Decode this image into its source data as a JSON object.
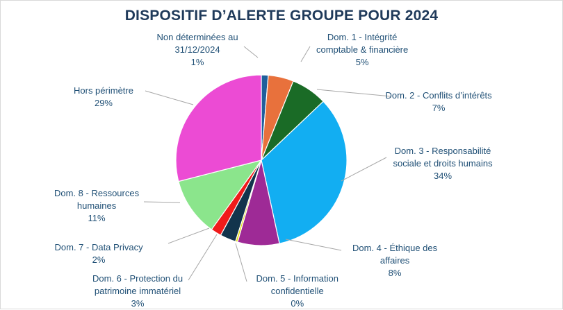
{
  "chart_data": {
    "type": "pie",
    "title": "DISPOSITIF D’ALERTE GROUPE POUR 2024",
    "slices": [
      {
        "name": "Non déterminées au 31/12/2024",
        "value_label": "1%",
        "value": 1.3,
        "color": "#1f5f9b",
        "text": [
          "Non déterminées au",
          "31/12/2024",
          "1%"
        ]
      },
      {
        "name": "Dom. 1 - Intégrité comptable & financière",
        "value_label": "5%",
        "value": 4.8,
        "color": "#e8713c",
        "text": [
          "Dom. 1 - Intégrité",
          "comptable & financière",
          "5%"
        ]
      },
      {
        "name": "Dom. 2 - Conflits d’intérêts",
        "value_label": "7%",
        "value": 6.8,
        "color": "#1a6b26",
        "text": [
          "Dom. 2 - Conflits d’intérêts",
          "7%"
        ]
      },
      {
        "name": "Dom. 3 - Responsabilité sociale et droits humains",
        "value_label": "34%",
        "value": 33.7,
        "color": "#12aef2",
        "text": [
          "Dom. 3 - Responsabilité",
          "sociale et droits humains",
          "34%"
        ]
      },
      {
        "name": "Dom. 4 - Éthique des affaires",
        "value_label": "8%",
        "value": 7.9,
        "color": "#9e2a96",
        "text": [
          "Dom. 4 - Éthique des",
          "affaires",
          "8%"
        ]
      },
      {
        "name": "Dom. 5 - Information confidentielle",
        "value_label": "0%",
        "value": 0.4,
        "color": "#e3df0f",
        "text": [
          "Dom. 5 - Information",
          "confidentielle",
          "0%"
        ]
      },
      {
        "name": "Dom. 6 - Protection du patrimoine immatériel",
        "value_label": "3%",
        "value": 3.0,
        "color": "#12344c",
        "text": [
          "Dom. 6 - Protection du",
          "patrimoine immatériel",
          "3%"
        ]
      },
      {
        "name": "Dom. 7 - Data Privacy",
        "value_label": "2%",
        "value": 2.0,
        "color": "#f01b1b",
        "text": [
          "Dom. 7 - Data Privacy",
          "2%"
        ]
      },
      {
        "name": "Dom. 8 - Ressources humaines",
        "value_label": "11%",
        "value": 11.1,
        "color": "#8be58c",
        "text": [
          "Dom. 8 - Ressources",
          "humaines",
          "11%"
        ]
      },
      {
        "name": "Hors périmètre",
        "value_label": "29%",
        "value": 29.0,
        "color": "#ec4bd4",
        "text": [
          "Hors périmètre",
          "29%"
        ]
      }
    ],
    "start_angle": "top",
    "direction": "clockwise",
    "legend": "none",
    "labels": "outside with leader lines"
  }
}
